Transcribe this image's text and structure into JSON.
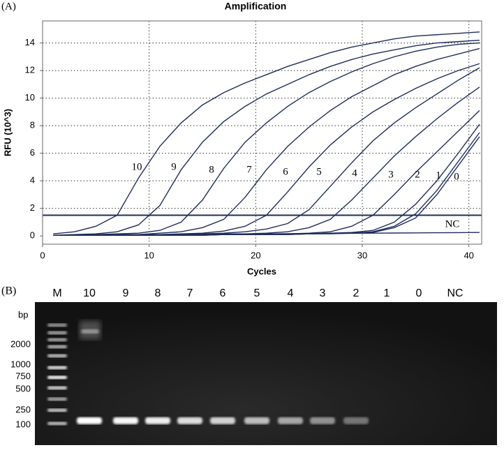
{
  "chart_data": {
    "type": "line",
    "panel_label": "(A)",
    "title": "Amplification",
    "x_label": "Cycles",
    "y_label": "RFU (10^3)",
    "x": [
      1,
      3,
      5,
      7,
      9,
      11,
      13,
      15,
      17,
      19,
      21,
      23,
      25,
      27,
      29,
      31,
      33,
      35,
      37,
      39,
      41
    ],
    "xlim": [
      0,
      41.2
    ],
    "xticks": [
      0,
      10,
      20,
      30,
      40
    ],
    "ylim": [
      -0.6,
      15.6
    ],
    "yticks": [
      0,
      2,
      4,
      6,
      8,
      10,
      12,
      14
    ],
    "grid": true,
    "threshold": 1.5,
    "series": [
      {
        "name": "10",
        "color": "#1f2d5c",
        "values": [
          0.15,
          0.3,
          0.7,
          1.5,
          4.2,
          6.5,
          8.2,
          9.5,
          10.4,
          11.1,
          11.7,
          12.3,
          12.8,
          13.3,
          13.7,
          14.0,
          14.3,
          14.5,
          14.6,
          14.7,
          14.8
        ]
      },
      {
        "name": "9",
        "color": "#1f2d5c",
        "values": [
          0.05,
          0.1,
          0.15,
          0.3,
          0.8,
          2.2,
          4.8,
          6.8,
          8.3,
          9.4,
          10.3,
          11.0,
          11.7,
          12.3,
          12.8,
          13.2,
          13.5,
          13.8,
          14.0,
          14.1,
          14.2
        ]
      },
      {
        "name": "8",
        "color": "#1f2d5c",
        "values": [
          0.05,
          0.05,
          0.1,
          0.15,
          0.2,
          0.4,
          1.0,
          2.6,
          4.9,
          6.8,
          8.2,
          9.4,
          10.4,
          11.2,
          11.9,
          12.5,
          13.0,
          13.4,
          13.7,
          13.9,
          14.0
        ]
      },
      {
        "name": "7",
        "color": "#1f2d5c",
        "values": [
          0.05,
          0.05,
          0.05,
          0.1,
          0.1,
          0.2,
          0.3,
          0.6,
          1.2,
          2.8,
          4.8,
          6.5,
          7.9,
          9.1,
          10.1,
          10.9,
          11.7,
          12.3,
          12.8,
          13.2,
          13.6
        ]
      },
      {
        "name": "6",
        "color": "#1f2d5c",
        "values": [
          0.05,
          0.05,
          0.05,
          0.05,
          0.1,
          0.1,
          0.15,
          0.2,
          0.35,
          0.7,
          1.5,
          3.2,
          5.0,
          6.6,
          7.9,
          9.0,
          9.9,
          10.7,
          11.4,
          12.0,
          12.5
        ]
      },
      {
        "name": "5",
        "color": "#1f2d5c",
        "values": [
          0.05,
          0.05,
          0.05,
          0.05,
          0.05,
          0.1,
          0.1,
          0.15,
          0.2,
          0.3,
          0.5,
          0.9,
          1.9,
          3.6,
          5.3,
          6.9,
          8.2,
          9.3,
          10.3,
          11.3,
          12.2
        ]
      },
      {
        "name": "4",
        "color": "#1f2d5c",
        "values": [
          0.05,
          0.05,
          0.05,
          0.05,
          0.05,
          0.05,
          0.1,
          0.1,
          0.15,
          0.15,
          0.2,
          0.3,
          0.6,
          1.2,
          2.6,
          4.2,
          5.8,
          7.2,
          8.5,
          9.7,
          10.8
        ]
      },
      {
        "name": "3",
        "color": "#1f2d5c",
        "values": [
          0.05,
          0.05,
          0.05,
          0.05,
          0.05,
          0.05,
          0.05,
          0.1,
          0.1,
          0.1,
          0.15,
          0.15,
          0.2,
          0.3,
          0.7,
          1.5,
          3.0,
          4.6,
          6.1,
          7.6,
          9.1
        ]
      },
      {
        "name": "2",
        "color": "#1f2d5c",
        "values": [
          0.05,
          0.05,
          0.05,
          0.05,
          0.05,
          0.05,
          0.05,
          0.05,
          0.1,
          0.1,
          0.1,
          0.15,
          0.15,
          0.2,
          0.25,
          0.4,
          1.0,
          2.3,
          4.0,
          6.0,
          8.1
        ]
      },
      {
        "name": "1",
        "color": "#1f2d5c",
        "values": [
          0.05,
          0.05,
          0.05,
          0.05,
          0.05,
          0.05,
          0.05,
          0.05,
          0.1,
          0.1,
          0.1,
          0.1,
          0.15,
          0.2,
          0.2,
          0.3,
          0.7,
          1.6,
          3.3,
          5.4,
          7.5
        ]
      },
      {
        "name": "0",
        "color": "#1f2d5c",
        "values": [
          0.05,
          0.05,
          0.05,
          0.05,
          0.05,
          0.05,
          0.05,
          0.05,
          0.1,
          0.1,
          0.1,
          0.1,
          0.15,
          0.15,
          0.2,
          0.25,
          0.6,
          1.3,
          3.0,
          5.1,
          7.2
        ]
      },
      {
        "name": "NC",
        "color": "#1f2d5c",
        "values": [
          0.05,
          0.06,
          0.07,
          0.08,
          0.09,
          0.1,
          0.11,
          0.12,
          0.13,
          0.14,
          0.15,
          0.16,
          0.17,
          0.18,
          0.19,
          0.2,
          0.21,
          0.22,
          0.23,
          0.24,
          0.25
        ]
      }
    ]
  },
  "gel": {
    "panel_label": "(B)",
    "lanes": [
      "M",
      "10",
      "9",
      "8",
      "7",
      "6",
      "5",
      "4",
      "3",
      "2",
      "1",
      "0",
      "NC"
    ],
    "size_labels": [
      "bp",
      "2000",
      "1000",
      "750",
      "500",
      "250",
      "100"
    ]
  }
}
